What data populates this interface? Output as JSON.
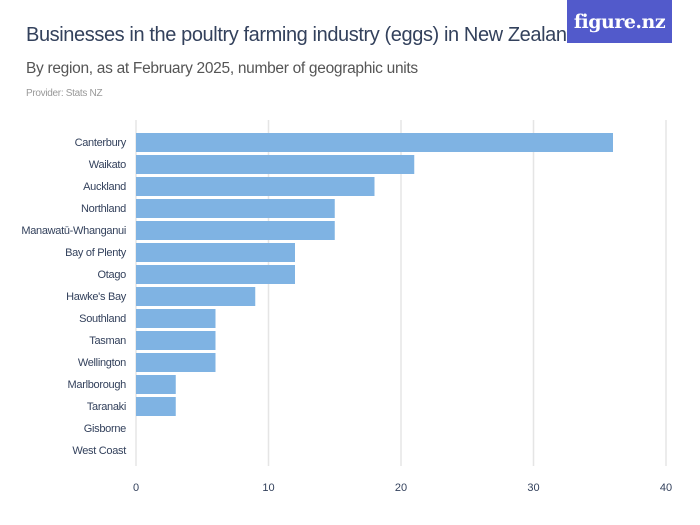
{
  "header": {
    "title": "Businesses in the poultry farming industry (eggs) in New Zealand",
    "subtitle": "By region, as at February 2025, number of geographic units",
    "provider": "Provider: Stats NZ",
    "logo": "figure.nz"
  },
  "chart_data": {
    "type": "bar",
    "orientation": "horizontal",
    "title": "Businesses in the poultry farming industry (eggs) in New Zealand",
    "subtitle": "By region, as at February 2025, number of geographic units",
    "categories": [
      "Canterbury",
      "Waikato",
      "Auckland",
      "Northland",
      "Manawatū-Whanganui",
      "Bay of Plenty",
      "Otago",
      "Hawke's Bay",
      "Southland",
      "Tasman",
      "Wellington",
      "Marlborough",
      "Taranaki",
      "Gisborne",
      "West Coast"
    ],
    "values": [
      36,
      21,
      18,
      15,
      15,
      12,
      12,
      9,
      6,
      6,
      6,
      3,
      3,
      0,
      0
    ],
    "xlim": [
      0,
      40
    ],
    "xticks": [
      0,
      10,
      20,
      30,
      40
    ],
    "xlabel": "",
    "ylabel": "",
    "grid": true,
    "bar_color": "#7fb3e3",
    "grid_color": "#e5e5e5"
  }
}
